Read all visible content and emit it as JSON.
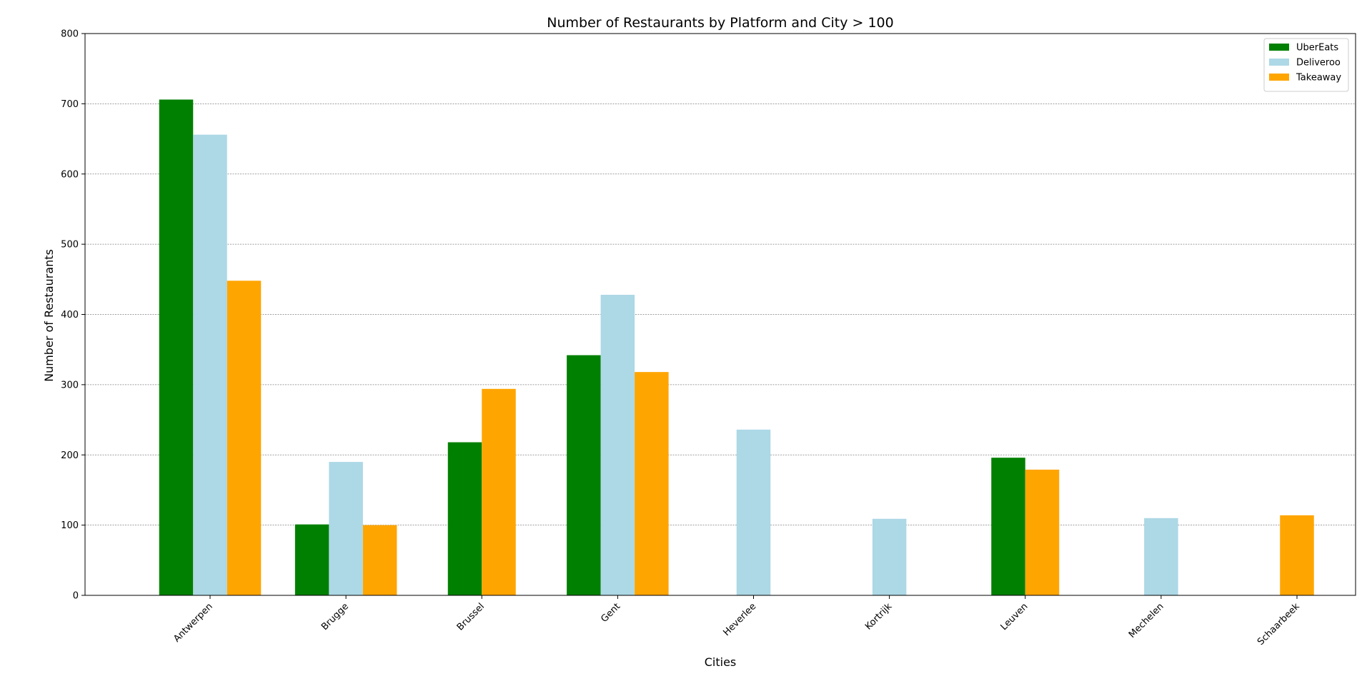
{
  "chart_data": {
    "type": "bar",
    "title": "Number of Restaurants by Platform and City > 100",
    "xlabel": "Cities",
    "ylabel": "Number of Restaurants",
    "ylim": [
      0,
      800
    ],
    "yticks": [
      0,
      100,
      200,
      300,
      400,
      500,
      600,
      700,
      800
    ],
    "grid": "horizontal dashed",
    "legend_position": "top-right",
    "categories": [
      "Antwerpen",
      "Brugge",
      "Brussel",
      "Gent",
      "Heverlee",
      "Kortrijk",
      "Leuven",
      "Mechelen",
      "Schaarbeek"
    ],
    "series": [
      {
        "name": "UberEats",
        "color": "#008000",
        "values": [
          706,
          101,
          218,
          342,
          null,
          null,
          196,
          null,
          null
        ]
      },
      {
        "name": "Deliveroo",
        "color": "#add8e6",
        "values": [
          656,
          190,
          null,
          428,
          236,
          109,
          null,
          110,
          null
        ]
      },
      {
        "name": "Takeaway",
        "color": "#ffa500",
        "values": [
          448,
          100,
          294,
          318,
          null,
          null,
          179,
          null,
          114
        ]
      }
    ]
  }
}
